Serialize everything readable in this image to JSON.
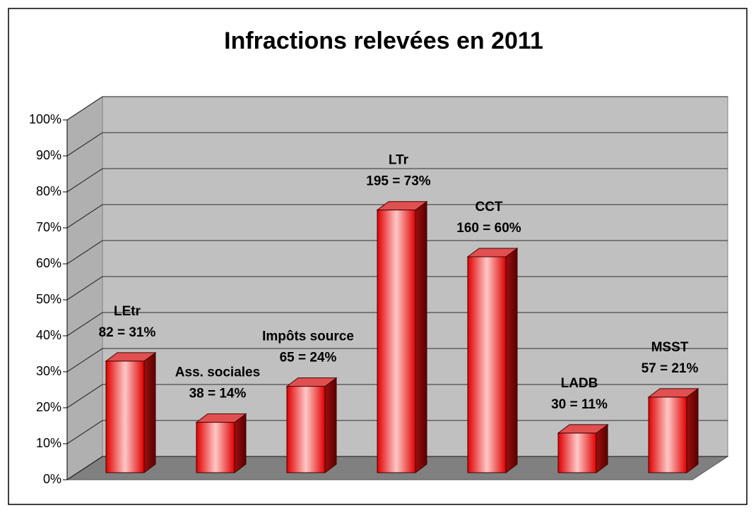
{
  "chart_data": {
    "type": "bar3d",
    "title": "Infractions relevées en 2011",
    "categories": [
      "LEtr",
      "Ass. sociales",
      "Impôts source",
      "LTr",
      "CCT",
      "LADB",
      "MSST"
    ],
    "values": [
      31,
      14,
      24,
      73,
      60,
      11,
      21
    ],
    "value_labels": [
      "82 = 31%",
      "38 = 14%",
      "65 = 24%",
      "195 = 73%",
      "160 = 60%",
      "30 = 11%",
      "57 = 21%"
    ],
    "color": "#ff2020",
    "ylim": [
      0,
      100
    ],
    "yticks": [
      {
        "value": 0,
        "label": "0%"
      },
      {
        "value": 10,
        "label": "10%"
      },
      {
        "value": 20,
        "label": "20%"
      },
      {
        "value": 30,
        "label": "30%"
      },
      {
        "value": 40,
        "label": "40%"
      },
      {
        "value": 50,
        "label": "50%"
      },
      {
        "value": 60,
        "label": "60%"
      },
      {
        "value": 70,
        "label": "70%"
      },
      {
        "value": 80,
        "label": "80%"
      },
      {
        "value": 90,
        "label": "90%"
      },
      {
        "value": 100,
        "label": "100%"
      }
    ],
    "grid": true
  }
}
